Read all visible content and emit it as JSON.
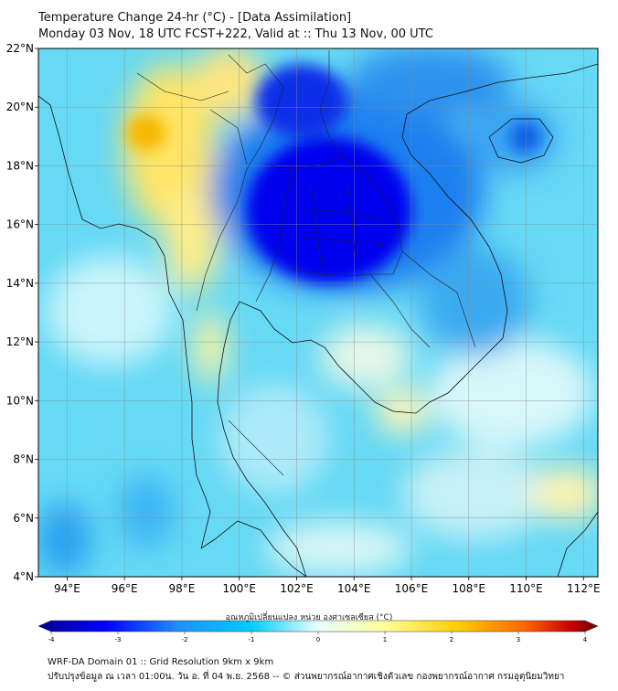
{
  "header": {
    "title_line1": "Temperature Change 24-hr (°C) - [Data Assimilation]",
    "title_line2": "Monday 03 Nov, 18 UTC FCST+222, Valid at :: Thu 13 Nov, 00 UTC"
  },
  "map": {
    "lat_labels": [
      "22°N",
      "20°N",
      "18°N",
      "16°N",
      "14°N",
      "12°N",
      "10°N",
      "8°N",
      "6°N",
      "4°N"
    ],
    "lon_labels": [
      "94°E",
      "96°E",
      "98°E",
      "100°E",
      "102°E",
      "104°E",
      "106°E",
      "108°E",
      "110°E",
      "112°E"
    ],
    "lat_range": [
      4,
      22
    ],
    "lon_range": [
      93,
      112.5
    ]
  },
  "colorbar": {
    "title": "อุณหภูมิเปลี่ยนแปลง หน่วย องศาเซลเซียส (°C)",
    "ticks": [
      "-4",
      "-3",
      "-2",
      "-1",
      "0",
      "1",
      "2",
      "3",
      "4"
    ],
    "range": [
      -4,
      4
    ],
    "colors": [
      "#00008c",
      "#0000ff",
      "#1e90ff",
      "#00ccff",
      "#e8ffff",
      "#ffff99",
      "#ffcc00",
      "#ff6600",
      "#cc0000",
      "#660000"
    ]
  },
  "footer": {
    "line1": "WRF-DA Domain 01 :: Grid Resolution 9km x 9km",
    "line2": "ปรับปรุงข้อมูล ณ เวลา 01:00น. วัน อ. ที่ 04 พ.ย. 2568 -- © ส่วนพยากรณ์อากาศเชิงตัวเลข กองพยากรณ์อากาศ กรมอุตุนิยมวิทยา"
  }
}
